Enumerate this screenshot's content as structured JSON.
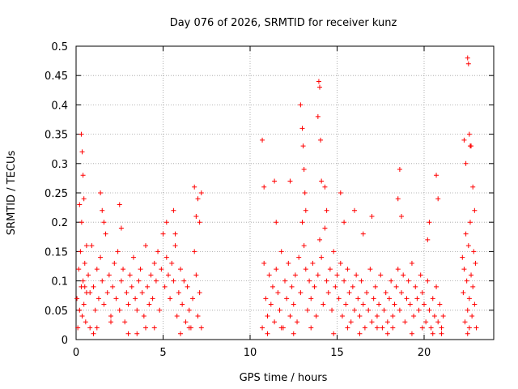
{
  "chart_data": {
    "type": "scatter",
    "title": "Day 076 of 2026, SRMTID for receiver kunz",
    "xlabel": "GPS time / hours",
    "ylabel": "SRMTID / TECUs",
    "xlim": [
      0,
      24
    ],
    "ylim": [
      0,
      0.5
    ],
    "x_ticks": [
      0,
      5,
      10,
      15,
      20
    ],
    "y_ticks": [
      0,
      0.05,
      0.1,
      0.15,
      0.2,
      0.25,
      0.3,
      0.35,
      0.4,
      0.45,
      0.5
    ],
    "x_tick_labels": [
      "0",
      "5",
      "10",
      "15",
      "20"
    ],
    "y_tick_labels": [
      "0",
      "0.05",
      "0.1",
      "0.15",
      "0.2",
      "0.25",
      "0.3",
      "0.35",
      "0.4",
      "0.45",
      "0.5"
    ],
    "grid": true,
    "marker": "+",
    "color": "#ff0000",
    "series": [
      {
        "name": "SRMTID",
        "x": [
          0.05,
          0.1,
          0.15,
          0.2,
          0.25,
          0.3,
          0.32,
          0.35,
          0.4,
          0.45,
          0.5,
          0.55,
          0.6,
          0.7,
          0.8,
          0.9,
          1.0,
          1.1,
          1.2,
          1.3,
          1.4,
          1.5,
          1.6,
          1.7,
          1.8,
          1.9,
          2.0,
          2.1,
          2.2,
          2.3,
          2.4,
          2.5,
          2.6,
          2.7,
          2.8,
          2.9,
          3.0,
          3.1,
          3.2,
          3.3,
          3.4,
          3.5,
          3.6,
          3.7,
          3.8,
          3.9,
          4.0,
          4.1,
          4.2,
          4.3,
          4.4,
          4.5,
          4.6,
          4.7,
          4.8,
          4.9,
          5.0,
          5.1,
          5.2,
          5.3,
          5.4,
          5.5,
          5.6,
          5.7,
          5.8,
          5.9,
          6.0,
          6.1,
          6.2,
          6.3,
          6.4,
          6.5,
          6.6,
          6.7,
          6.8,
          6.9,
          7.0,
          7.1,
          7.2,
          0.3,
          0.35,
          0.4,
          0.45,
          0.2,
          0.6,
          1.4,
          1.5,
          1.6,
          2.5,
          2.6,
          5.2,
          5.6,
          5.7,
          6.8,
          6.9,
          7.0,
          7.1,
          7.2,
          3.5,
          4.0,
          1.0,
          1.2,
          2.0,
          3.0,
          0.5,
          0.8,
          4.5,
          6.0,
          6.5
        ],
        "y": [
          0.07,
          0.02,
          0.12,
          0.05,
          0.15,
          0.09,
          0.2,
          0.04,
          0.1,
          0.06,
          0.13,
          0.03,
          0.08,
          0.11,
          0.02,
          0.16,
          0.09,
          0.05,
          0.12,
          0.07,
          0.14,
          0.1,
          0.06,
          0.18,
          0.08,
          0.11,
          0.04,
          0.09,
          0.13,
          0.07,
          0.15,
          0.05,
          0.1,
          0.12,
          0.03,
          0.08,
          0.06,
          0.11,
          0.09,
          0.14,
          0.07,
          0.05,
          0.1,
          0.12,
          0.08,
          0.04,
          0.16,
          0.09,
          0.06,
          0.11,
          0.07,
          0.13,
          0.1,
          0.15,
          0.05,
          0.12,
          0.18,
          0.09,
          0.14,
          0.11,
          0.07,
          0.13,
          0.1,
          0.16,
          0.04,
          0.08,
          0.12,
          0.06,
          0.1,
          0.03,
          0.09,
          0.05,
          0.02,
          0.07,
          0.15,
          0.11,
          0.04,
          0.08,
          0.02,
          0.35,
          0.32,
          0.28,
          0.24,
          0.23,
          0.16,
          0.25,
          0.22,
          0.2,
          0.23,
          0.19,
          0.2,
          0.22,
          0.18,
          0.26,
          0.21,
          0.24,
          0.2,
          0.25,
          0.01,
          0.02,
          0.01,
          0.02,
          0.03,
          0.01,
          0.09,
          0.08,
          0.02,
          0.01,
          0.02
        ]
      },
      {
        "name": "SRMTID",
        "x": [
          10.7,
          10.8,
          10.9,
          11.0,
          11.1,
          11.2,
          11.3,
          11.4,
          11.5,
          11.6,
          11.7,
          11.8,
          11.9,
          12.0,
          12.1,
          12.2,
          12.3,
          12.4,
          12.5,
          12.6,
          12.7,
          12.8,
          12.9,
          13.0,
          13.1,
          13.2,
          13.3,
          13.4,
          13.5,
          13.6,
          13.7,
          13.8,
          13.9,
          14.0,
          14.1,
          14.2,
          14.3,
          14.4,
          14.5,
          14.6,
          14.7,
          14.8,
          14.9,
          15.0,
          15.1,
          15.2,
          15.3,
          15.4,
          15.5,
          15.6,
          15.7,
          15.8,
          15.9,
          16.0,
          16.1,
          16.2,
          16.3,
          16.4,
          16.5,
          16.6,
          16.7,
          16.8,
          16.9,
          17.0,
          17.1,
          17.2,
          17.3,
          17.4,
          17.5,
          17.6,
          17.7,
          17.8,
          17.9,
          18.0,
          18.1,
          18.2,
          18.3,
          18.4,
          18.5,
          18.6,
          18.7,
          18.8,
          18.9,
          19.0,
          19.1,
          19.2,
          19.3,
          19.4,
          19.5,
          19.6,
          19.7,
          19.8,
          19.9,
          20.0,
          20.1,
          20.2,
          20.3,
          20.4,
          20.5,
          20.6,
          20.7,
          20.8,
          20.9,
          21.0,
          21.1,
          10.7,
          10.8,
          11.4,
          11.5,
          12.3,
          12.9,
          13.0,
          13.05,
          13.1,
          13.15,
          13.2,
          13.9,
          13.95,
          14.0,
          14.05,
          14.1,
          14.3,
          14.4,
          15.2,
          15.4,
          16.0,
          16.5,
          17.0,
          18.5,
          18.6,
          18.7,
          20.2,
          20.3,
          20.7,
          20.8,
          11.0,
          11.8,
          12.5,
          13.5,
          14.8,
          15.6,
          16.3,
          17.3,
          17.9,
          18.2,
          19.3,
          19.9,
          20.5,
          21.0
        ],
        "y": [
          0.02,
          0.13,
          0.07,
          0.04,
          0.11,
          0.06,
          0.09,
          0.03,
          0.12,
          0.08,
          0.05,
          0.15,
          0.02,
          0.1,
          0.07,
          0.13,
          0.04,
          0.09,
          0.06,
          0.11,
          0.03,
          0.14,
          0.08,
          0.2,
          0.16,
          0.12,
          0.05,
          0.1,
          0.07,
          0.13,
          0.09,
          0.04,
          0.11,
          0.17,
          0.14,
          0.06,
          0.19,
          0.1,
          0.08,
          0.12,
          0.05,
          0.15,
          0.09,
          0.11,
          0.07,
          0.13,
          0.04,
          0.1,
          0.06,
          0.12,
          0.08,
          0.03,
          0.09,
          0.05,
          0.11,
          0.07,
          0.04,
          0.1,
          0.06,
          0.02,
          0.08,
          0.05,
          0.12,
          0.03,
          0.07,
          0.09,
          0.04,
          0.06,
          0.11,
          0.02,
          0.05,
          0.08,
          0.03,
          0.07,
          0.1,
          0.04,
          0.06,
          0.09,
          0.12,
          0.05,
          0.08,
          0.11,
          0.03,
          0.07,
          0.1,
          0.06,
          0.13,
          0.04,
          0.09,
          0.07,
          0.05,
          0.11,
          0.08,
          0.06,
          0.03,
          0.1,
          0.05,
          0.02,
          0.07,
          0.04,
          0.09,
          0.03,
          0.06,
          0.02,
          0.04,
          0.34,
          0.26,
          0.27,
          0.2,
          0.27,
          0.4,
          0.36,
          0.33,
          0.29,
          0.25,
          0.22,
          0.38,
          0.44,
          0.43,
          0.34,
          0.27,
          0.26,
          0.22,
          0.25,
          0.2,
          0.22,
          0.18,
          0.21,
          0.24,
          0.29,
          0.21,
          0.17,
          0.2,
          0.28,
          0.24,
          0.01,
          0.02,
          0.01,
          0.02,
          0.01,
          0.02,
          0.01,
          0.02,
          0.01,
          0.02,
          0.01,
          0.02,
          0.01,
          0.01
        ]
      },
      {
        "name": "SRMTID",
        "x": [
          22.2,
          22.25,
          22.3,
          22.35,
          22.4,
          22.45,
          22.5,
          22.55,
          22.6,
          22.65,
          22.7,
          22.75,
          22.8,
          22.85,
          22.9,
          22.95,
          23.0,
          22.5,
          22.55,
          22.6,
          22.65,
          22.3,
          22.4,
          22.7,
          22.8,
          22.9,
          22.5,
          22.6
        ],
        "y": [
          0.14,
          0.08,
          0.12,
          0.03,
          0.18,
          0.1,
          0.05,
          0.16,
          0.07,
          0.2,
          0.11,
          0.04,
          0.09,
          0.15,
          0.06,
          0.13,
          0.02,
          0.48,
          0.47,
          0.35,
          0.33,
          0.34,
          0.3,
          0.33,
          0.26,
          0.22,
          0.01,
          0.02
        ]
      }
    ]
  }
}
